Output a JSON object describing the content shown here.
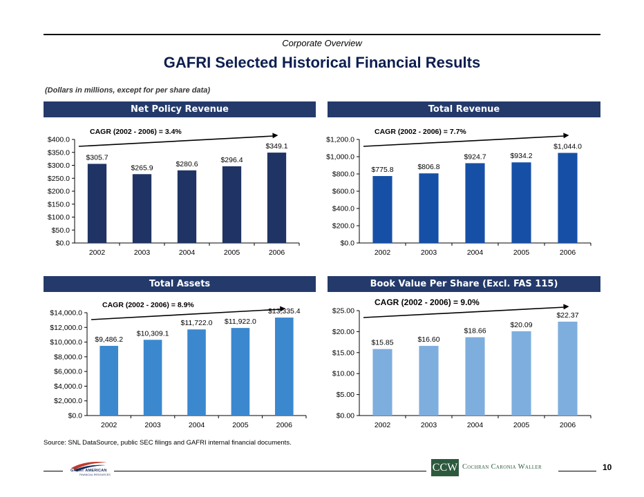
{
  "header": {
    "section_label": "Corporate Overview",
    "title": "GAFRI Selected Historical Financial Results",
    "subnote": "(Dollars in millions, except for per share data)"
  },
  "panels": [
    {
      "title": "Net Policy Revenue"
    },
    {
      "title": "Total Revenue"
    },
    {
      "title": "Total Assets"
    },
    {
      "title": "Book Value Per Share (Excl. FAS 115)"
    }
  ],
  "colors": {
    "header_bg": "#243a6b",
    "net_policy_bar": "#1f3464",
    "total_revenue_bar": "#1650a6",
    "total_assets_bar": "#3b88cf",
    "book_value_bar": "#7eaede"
  },
  "chart_data": [
    {
      "type": "bar",
      "title": "Net Policy Revenue",
      "categories": [
        "2002",
        "2003",
        "2004",
        "2005",
        "2006"
      ],
      "values": [
        305.7,
        265.9,
        280.6,
        296.4,
        349.1
      ],
      "value_labels": [
        "$305.7",
        "$265.9",
        "$280.6",
        "$296.4",
        "$349.1"
      ],
      "ylim": [
        0,
        400
      ],
      "yticks": [
        "$0.0",
        "$50.0",
        "$100.0",
        "$150.0",
        "$200.0",
        "$250.0",
        "$300.0",
        "$350.0",
        "$400.0"
      ],
      "annotation": "CAGR (2002 - 2006) = 3.4%",
      "color": "#1f3464"
    },
    {
      "type": "bar",
      "title": "Total Revenue",
      "categories": [
        "2002",
        "2003",
        "2004",
        "2005",
        "2006"
      ],
      "values": [
        775.8,
        806.8,
        924.7,
        934.2,
        1044.0
      ],
      "value_labels": [
        "$775.8",
        "$806.8",
        "$924.7",
        "$934.2",
        "$1,044.0"
      ],
      "ylim": [
        0,
        1200
      ],
      "yticks": [
        "$0.0",
        "$200.0",
        "$400.0",
        "$600.0",
        "$800.0",
        "$1,000.0",
        "$1,200.0"
      ],
      "annotation": "CAGR (2002 - 2006) = 7.7%",
      "color": "#1650a6"
    },
    {
      "type": "bar",
      "title": "Total Assets",
      "categories": [
        "2002",
        "2003",
        "2004",
        "2005",
        "2006"
      ],
      "values": [
        9486.2,
        10309.1,
        11722.0,
        11922.0,
        13335.4
      ],
      "value_labels": [
        "$9,486.2",
        "$10,309.1",
        "$11,722.0",
        "$11,922.0",
        "$13,335.4"
      ],
      "ylim": [
        0,
        14000
      ],
      "yticks": [
        "$0.0",
        "$2,000.0",
        "$4,000.0",
        "$6,000.0",
        "$8,000.0",
        "$10,000.0",
        "$12,000.0",
        "$14,000.0"
      ],
      "annotation": "CAGR (2002 - 2006) = 8.9%",
      "color": "#3b88cf"
    },
    {
      "type": "bar",
      "title": "Book Value Per Share (Excl. FAS 115)",
      "categories": [
        "2002",
        "2003",
        "2004",
        "2005",
        "2006"
      ],
      "values": [
        15.85,
        16.6,
        18.66,
        20.09,
        22.37
      ],
      "value_labels": [
        "$15.85",
        "$16.60",
        "$18.66",
        "$20.09",
        "$22.37"
      ],
      "ylim": [
        0,
        25
      ],
      "yticks": [
        "$0.00",
        "$5.00",
        "$10.00",
        "$15.00",
        "$20.00",
        "$25.00"
      ],
      "annotation": "CAGR (2002 - 2006) = 9.0%",
      "color": "#7eaede"
    }
  ],
  "footer": {
    "source": "Source:  SNL DataSource, public SEC filings and GAFRI internal financial documents.",
    "page_number": "10",
    "left_logo_text": "GREAT AMERICAN",
    "left_logo_subtext": "FINANCIAL RESOURCES",
    "right_logo_mark": "CCW",
    "right_logo_name": "Cochran Caronia Waller"
  }
}
